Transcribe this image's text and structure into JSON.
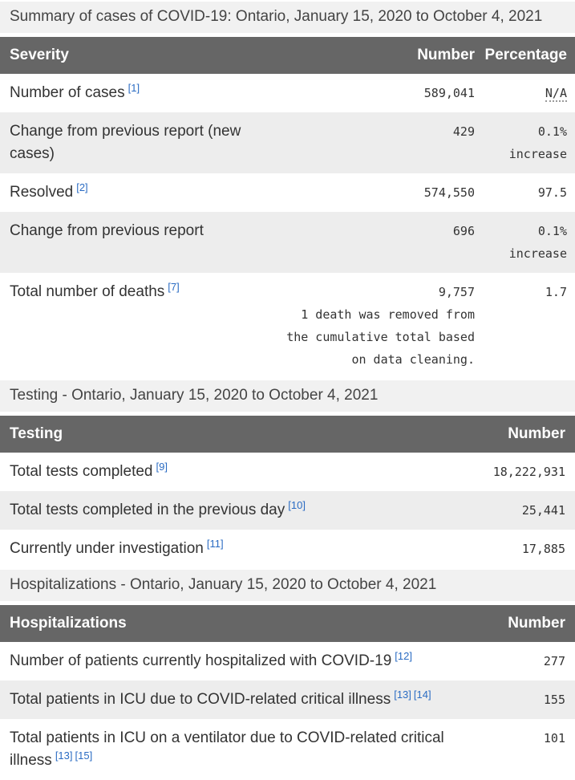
{
  "colors": {
    "header_bg": "#666666",
    "header_text": "#ffffff",
    "caption_bg": "#f1f1f1",
    "alt_row_bg": "#ededed",
    "body_text": "#333333",
    "footnote_link_blue": "#2b6cc3"
  },
  "tables": [
    {
      "caption": "Summary of cases of COVID-19: Ontario, January 15, 2020 to October 4, 2021",
      "columns": [
        "Severity",
        "Number",
        "Percentage"
      ],
      "rows": [
        {
          "label": "Number of cases",
          "footnotes": [
            "[1]"
          ],
          "number": "589,041",
          "percentage": "N/A",
          "percentage_is_abbr": true
        },
        {
          "label": "Change from previous report (new cases)",
          "footnotes": [],
          "number": "429",
          "percentage": "0.1% increase"
        },
        {
          "label": "Resolved",
          "footnotes": [
            "[2]"
          ],
          "number": "574,550",
          "percentage": "97.5"
        },
        {
          "label": "Change from previous report",
          "footnotes": [],
          "number": "696",
          "percentage": "0.1% increase"
        },
        {
          "label": "Total number of deaths",
          "footnotes": [
            "[7]"
          ],
          "number": "9,757",
          "number_note": "1 death was removed from the cumulative total based on data cleaning.",
          "percentage": "1.7"
        }
      ]
    },
    {
      "caption": "Testing - Ontario, January 15, 2020 to October 4, 2021",
      "columns": [
        "Testing",
        "Number"
      ],
      "rows": [
        {
          "label": "Total tests completed",
          "footnotes": [
            "[9]"
          ],
          "number": "18,222,931"
        },
        {
          "label": "Total tests completed in the previous day",
          "footnotes": [
            "[10]"
          ],
          "number": "25,441"
        },
        {
          "label": "Currently under investigation",
          "footnotes": [
            "[11]"
          ],
          "number": "17,885"
        }
      ]
    },
    {
      "caption": "Hospitalizations - Ontario, January 15, 2020 to October 4, 2021",
      "columns": [
        "Hospitalizations",
        "Number"
      ],
      "rows": [
        {
          "label": "Number of patients currently hospitalized with COVID-19",
          "footnotes": [
            "[12]"
          ],
          "number": "277"
        },
        {
          "label": "Total patients in ICU due to COVID-related critical illness",
          "footnotes": [
            "[13]",
            "[14]"
          ],
          "number": "155"
        },
        {
          "label": "Total patients in ICU on a ventilator due to COVID-related critical illness",
          "footnotes": [
            "[13]",
            "[15]"
          ],
          "number": "101"
        }
      ]
    }
  ]
}
